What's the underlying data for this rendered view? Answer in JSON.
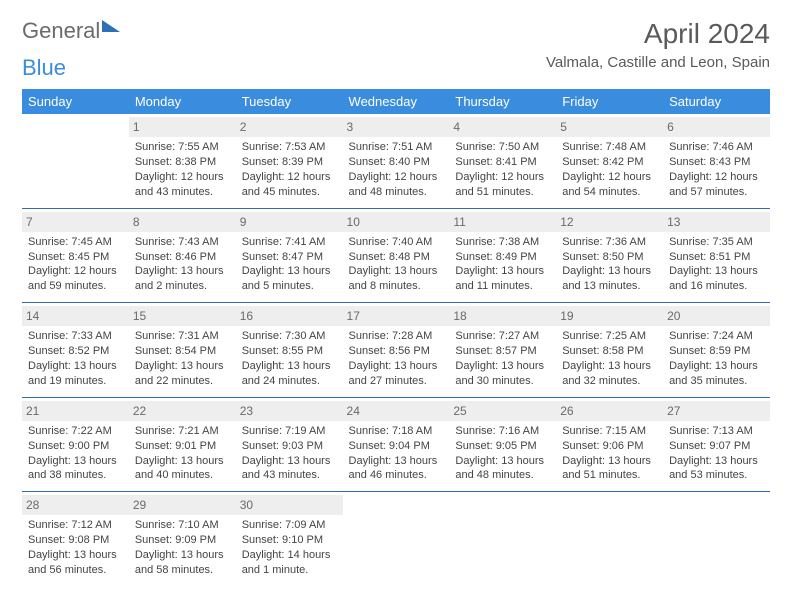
{
  "brand": {
    "part1": "General",
    "part2": "Blue"
  },
  "title": "April 2024",
  "location": "Valmala, Castille and Leon, Spain",
  "colors": {
    "header_bg": "#3a8dde",
    "header_text": "#ffffff",
    "daynum_bg": "#eeeeee",
    "daynum_text": "#6a6a6a",
    "border": "#2e6fb5",
    "body_text": "#444444"
  },
  "day_headers": [
    "Sunday",
    "Monday",
    "Tuesday",
    "Wednesday",
    "Thursday",
    "Friday",
    "Saturday"
  ],
  "weeks": [
    [
      {
        "empty": true
      },
      {
        "day": "1",
        "sunrise": "Sunrise: 7:55 AM",
        "sunset": "Sunset: 8:38 PM",
        "daylight": "Daylight: 12 hours and 43 minutes."
      },
      {
        "day": "2",
        "sunrise": "Sunrise: 7:53 AM",
        "sunset": "Sunset: 8:39 PM",
        "daylight": "Daylight: 12 hours and 45 minutes."
      },
      {
        "day": "3",
        "sunrise": "Sunrise: 7:51 AM",
        "sunset": "Sunset: 8:40 PM",
        "daylight": "Daylight: 12 hours and 48 minutes."
      },
      {
        "day": "4",
        "sunrise": "Sunrise: 7:50 AM",
        "sunset": "Sunset: 8:41 PM",
        "daylight": "Daylight: 12 hours and 51 minutes."
      },
      {
        "day": "5",
        "sunrise": "Sunrise: 7:48 AM",
        "sunset": "Sunset: 8:42 PM",
        "daylight": "Daylight: 12 hours and 54 minutes."
      },
      {
        "day": "6",
        "sunrise": "Sunrise: 7:46 AM",
        "sunset": "Sunset: 8:43 PM",
        "daylight": "Daylight: 12 hours and 57 minutes."
      }
    ],
    [
      {
        "day": "7",
        "sunrise": "Sunrise: 7:45 AM",
        "sunset": "Sunset: 8:45 PM",
        "daylight": "Daylight: 12 hours and 59 minutes."
      },
      {
        "day": "8",
        "sunrise": "Sunrise: 7:43 AM",
        "sunset": "Sunset: 8:46 PM",
        "daylight": "Daylight: 13 hours and 2 minutes."
      },
      {
        "day": "9",
        "sunrise": "Sunrise: 7:41 AM",
        "sunset": "Sunset: 8:47 PM",
        "daylight": "Daylight: 13 hours and 5 minutes."
      },
      {
        "day": "10",
        "sunrise": "Sunrise: 7:40 AM",
        "sunset": "Sunset: 8:48 PM",
        "daylight": "Daylight: 13 hours and 8 minutes."
      },
      {
        "day": "11",
        "sunrise": "Sunrise: 7:38 AM",
        "sunset": "Sunset: 8:49 PM",
        "daylight": "Daylight: 13 hours and 11 minutes."
      },
      {
        "day": "12",
        "sunrise": "Sunrise: 7:36 AM",
        "sunset": "Sunset: 8:50 PM",
        "daylight": "Daylight: 13 hours and 13 minutes."
      },
      {
        "day": "13",
        "sunrise": "Sunrise: 7:35 AM",
        "sunset": "Sunset: 8:51 PM",
        "daylight": "Daylight: 13 hours and 16 minutes."
      }
    ],
    [
      {
        "day": "14",
        "sunrise": "Sunrise: 7:33 AM",
        "sunset": "Sunset: 8:52 PM",
        "daylight": "Daylight: 13 hours and 19 minutes."
      },
      {
        "day": "15",
        "sunrise": "Sunrise: 7:31 AM",
        "sunset": "Sunset: 8:54 PM",
        "daylight": "Daylight: 13 hours and 22 minutes."
      },
      {
        "day": "16",
        "sunrise": "Sunrise: 7:30 AM",
        "sunset": "Sunset: 8:55 PM",
        "daylight": "Daylight: 13 hours and 24 minutes."
      },
      {
        "day": "17",
        "sunrise": "Sunrise: 7:28 AM",
        "sunset": "Sunset: 8:56 PM",
        "daylight": "Daylight: 13 hours and 27 minutes."
      },
      {
        "day": "18",
        "sunrise": "Sunrise: 7:27 AM",
        "sunset": "Sunset: 8:57 PM",
        "daylight": "Daylight: 13 hours and 30 minutes."
      },
      {
        "day": "19",
        "sunrise": "Sunrise: 7:25 AM",
        "sunset": "Sunset: 8:58 PM",
        "daylight": "Daylight: 13 hours and 32 minutes."
      },
      {
        "day": "20",
        "sunrise": "Sunrise: 7:24 AM",
        "sunset": "Sunset: 8:59 PM",
        "daylight": "Daylight: 13 hours and 35 minutes."
      }
    ],
    [
      {
        "day": "21",
        "sunrise": "Sunrise: 7:22 AM",
        "sunset": "Sunset: 9:00 PM",
        "daylight": "Daylight: 13 hours and 38 minutes."
      },
      {
        "day": "22",
        "sunrise": "Sunrise: 7:21 AM",
        "sunset": "Sunset: 9:01 PM",
        "daylight": "Daylight: 13 hours and 40 minutes."
      },
      {
        "day": "23",
        "sunrise": "Sunrise: 7:19 AM",
        "sunset": "Sunset: 9:03 PM",
        "daylight": "Daylight: 13 hours and 43 minutes."
      },
      {
        "day": "24",
        "sunrise": "Sunrise: 7:18 AM",
        "sunset": "Sunset: 9:04 PM",
        "daylight": "Daylight: 13 hours and 46 minutes."
      },
      {
        "day": "25",
        "sunrise": "Sunrise: 7:16 AM",
        "sunset": "Sunset: 9:05 PM",
        "daylight": "Daylight: 13 hours and 48 minutes."
      },
      {
        "day": "26",
        "sunrise": "Sunrise: 7:15 AM",
        "sunset": "Sunset: 9:06 PM",
        "daylight": "Daylight: 13 hours and 51 minutes."
      },
      {
        "day": "27",
        "sunrise": "Sunrise: 7:13 AM",
        "sunset": "Sunset: 9:07 PM",
        "daylight": "Daylight: 13 hours and 53 minutes."
      }
    ],
    [
      {
        "day": "28",
        "sunrise": "Sunrise: 7:12 AM",
        "sunset": "Sunset: 9:08 PM",
        "daylight": "Daylight: 13 hours and 56 minutes."
      },
      {
        "day": "29",
        "sunrise": "Sunrise: 7:10 AM",
        "sunset": "Sunset: 9:09 PM",
        "daylight": "Daylight: 13 hours and 58 minutes."
      },
      {
        "day": "30",
        "sunrise": "Sunrise: 7:09 AM",
        "sunset": "Sunset: 9:10 PM",
        "daylight": "Daylight: 14 hours and 1 minute."
      },
      {
        "empty": true
      },
      {
        "empty": true
      },
      {
        "empty": true
      },
      {
        "empty": true
      }
    ]
  ]
}
